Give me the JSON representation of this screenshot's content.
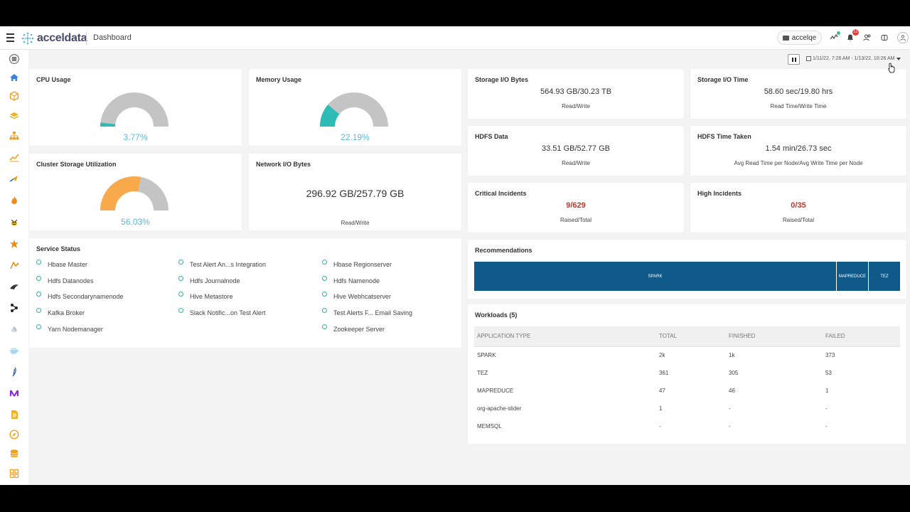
{
  "header": {
    "brand": "acceldata",
    "page_title": "Dashboard",
    "cluster": "accelqe",
    "notification_count": "12",
    "icons": [
      "activity-icon",
      "bell-icon",
      "users-icon",
      "database-icon",
      "user-icon"
    ]
  },
  "sidebar": {
    "icons": [
      "server-icon",
      "home-icon",
      "cube-icon",
      "layers-icon",
      "sitemap-icon",
      "trend-icon",
      "airflow-icon",
      "flame-icon",
      "bee-icon",
      "spark-icon",
      "nifi-icon",
      "kafka-icon",
      "kubernetes-icon",
      "druid-icon",
      "docker-icon",
      "feather-icon",
      "memsql-icon",
      "document-icon",
      "compass-icon",
      "stack-icon",
      "grid-icon"
    ]
  },
  "controls": {
    "date_range": "1/11/22, 7:26 AM - 1/13/22, 10:26 AM"
  },
  "cpu": {
    "title": "CPU Usage",
    "value": "3.77%",
    "fraction": 0.0377
  },
  "memory": {
    "title": "Memory Usage",
    "value": "22.19%",
    "fraction": 0.2219
  },
  "cluster_storage": {
    "title": "Cluster Storage Utilization",
    "value": "56.03%",
    "fraction": 0.5603
  },
  "network": {
    "title": "Network I/O Bytes",
    "value": "296.92 GB/257.79 GB",
    "label": "Read/Write"
  },
  "storage_io_bytes": {
    "title": "Storage I/O Bytes",
    "value": "564.93 GB/30.23 TB",
    "label": "Read/Write"
  },
  "storage_io_time": {
    "title": "Storage I/O Time",
    "value": "58.60 sec/19.80 hrs",
    "label": "Read Time/Write Time"
  },
  "hdfs_data": {
    "title": "HDFS Data",
    "value": "33.51 GB/52.77 GB",
    "label": "Read/Write"
  },
  "hdfs_time": {
    "title": "HDFS Time Taken",
    "value": "1.54 min/26.73 sec",
    "label": "Avg Read Time per Node/Avg Write Time per Node"
  },
  "critical": {
    "title": "Critical Incidents",
    "value": "9/629",
    "label": "Raised/Total"
  },
  "high": {
    "title": "High Incidents",
    "value": "0/35",
    "label": "Raised/Total"
  },
  "service_status": {
    "title": "Service Status",
    "col1": [
      "Hbase Master",
      "Hdfs Datanodes",
      "Hdfs Secondarynamenode",
      "Kafka Broker",
      "Yarn Nodemanager"
    ],
    "col2": [
      "Test Alert An...s Integration",
      "Hdfs Journalnode",
      "Hive Metastore",
      "Slack Notific...on Test Alert"
    ],
    "col3": [
      "Hbase Regionserver",
      "Hdfs Namenode",
      "Hive Webhcatserver",
      "Test Alerts F... Email Saving",
      "Zookeeper Server"
    ]
  },
  "recommendations": {
    "title": "Recommendations",
    "segments": [
      "SPARK",
      "MAPREDUCE",
      "TEZ"
    ]
  },
  "workloads": {
    "title": "Workloads (5)",
    "columns": [
      "APPLICATION TYPE",
      "TOTAL",
      "FINISHED",
      "FAILED"
    ],
    "rows": [
      [
        "SPARK",
        "2k",
        "1k",
        "373"
      ],
      [
        "TEZ",
        "361",
        "305",
        "53"
      ],
      [
        "MAPREDUCE",
        "47",
        "46",
        "1"
      ],
      [
        "org-apache-slider",
        "1",
        "-",
        "-"
      ],
      [
        "MEMSQL",
        "-",
        "-",
        "-"
      ]
    ]
  },
  "colors": {
    "gauge_bg": "#c4c4c4",
    "cpu_fill": "#2ebdb6",
    "memory_fill": "#2ebdb6",
    "storage_fill": "#f7a94b",
    "reco_bar": "#0f5a88",
    "incident_red": "#c0392b"
  }
}
